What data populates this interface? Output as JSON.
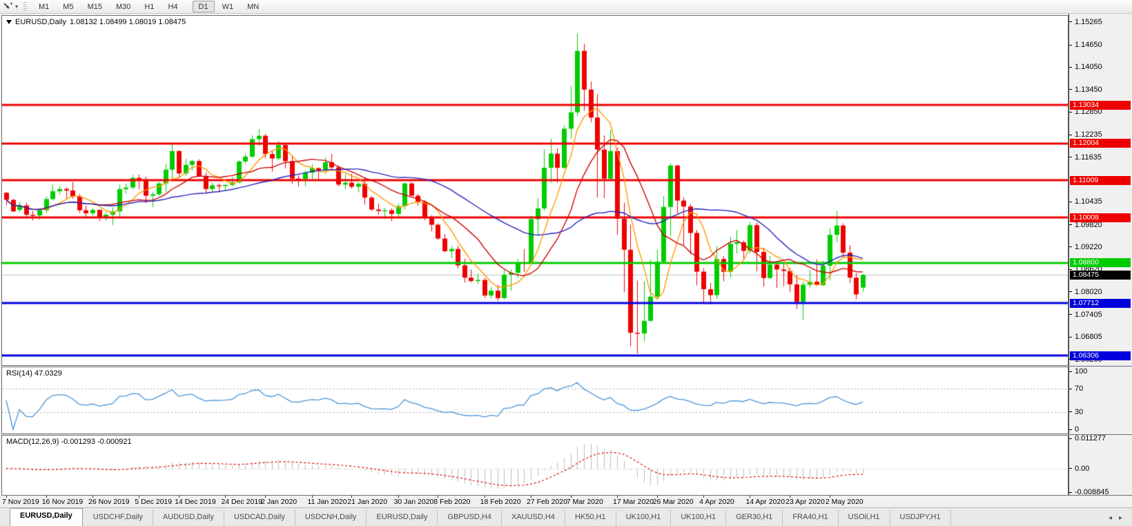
{
  "toolbar": {
    "timeframes": [
      {
        "label": "M1"
      },
      {
        "label": "M5"
      },
      {
        "label": "M15"
      },
      {
        "label": "M30"
      },
      {
        "label": "H1"
      },
      {
        "label": "H4"
      },
      {
        "label": "D1",
        "active": true
      },
      {
        "label": "W1"
      },
      {
        "label": "MN"
      }
    ]
  },
  "chart": {
    "title": {
      "symbol": "EURUSD,Daily",
      "ohlc": "1.08132 1.08499 1.08019 1.08475"
    },
    "view": {
      "price_max": 1.1543,
      "price_min": 1.0605
    },
    "price_axis": {
      "labels": [
        {
          "text": "1.15265",
          "price": 1.15265
        },
        {
          "text": "1.14650",
          "price": 1.1465
        },
        {
          "text": "1.14050",
          "price": 1.1405
        },
        {
          "text": "1.13450",
          "price": 1.1345
        },
        {
          "text": "1.12850",
          "price": 1.1285
        },
        {
          "text": "1.12235",
          "price": 1.12235
        },
        {
          "text": "1.11635",
          "price": 1.11635
        },
        {
          "text": "1.10435",
          "price": 1.10435
        },
        {
          "text": "1.09820",
          "price": 1.0982
        },
        {
          "text": "1.09220",
          "price": 1.0922
        },
        {
          "text": "1.08620",
          "price": 1.0862
        },
        {
          "text": "1.08020",
          "price": 1.0802
        },
        {
          "text": "1.07405",
          "price": 1.07405
        },
        {
          "text": "1.06805",
          "price": 1.06805
        },
        {
          "text": "1.06205",
          "price": 1.06205
        }
      ],
      "badges": [
        {
          "text": "1.13034",
          "price": 1.13034,
          "color": "#ee0000"
        },
        {
          "text": "1.12004",
          "price": 1.12004,
          "color": "#ee0000"
        },
        {
          "text": "1.11009",
          "price": 1.11009,
          "color": "#ee0000"
        },
        {
          "text": "1.10008",
          "price": 1.10008,
          "color": "#ee0000"
        },
        {
          "text": "1.08800",
          "price": 1.088,
          "color": "#00cc00"
        },
        {
          "text": "1.08475",
          "price": 1.08475,
          "color": "#000000",
          "current": true
        },
        {
          "text": "1.07712",
          "price": 1.07712,
          "color": "#0000dd"
        },
        {
          "text": "1.06306",
          "price": 1.06306,
          "color": "#0000dd"
        }
      ]
    },
    "hlines": [
      {
        "price": 1.13034,
        "color": "#ee0000",
        "width": 3
      },
      {
        "price": 1.12004,
        "color": "#ee0000",
        "width": 3
      },
      {
        "price": 1.11009,
        "color": "#ee0000",
        "width": 3
      },
      {
        "price": 1.10008,
        "color": "#ee0000",
        "width": 3
      },
      {
        "price": 1.088,
        "color": "#00cc00",
        "width": 3
      },
      {
        "price": 1.07712,
        "color": "#0000dd",
        "width": 3
      },
      {
        "price": 1.06306,
        "color": "#0000dd",
        "width": 3
      },
      {
        "price": 1.08475,
        "color": "#c0c0c0",
        "width": 1,
        "role": "current-price-line"
      }
    ]
  },
  "rsi": {
    "label": "RSI(14) 47.0329",
    "period": 14,
    "color": "#4790d9",
    "levels": [
      {
        "text": "100",
        "value": 100,
        "dashed": false
      },
      {
        "text": "70",
        "value": 70,
        "dashed": true
      },
      {
        "text": "30",
        "value": 30,
        "dashed": true
      },
      {
        "text": "0",
        "value": 0,
        "dashed": false
      }
    ]
  },
  "macd": {
    "label": "MACD(12,26,9) -0.001293 -0.000921",
    "fast": 12,
    "slow": 26,
    "signal": 9,
    "hist_color": "#bdbdbd",
    "signal_color": "#e00000",
    "range": {
      "max": 0.011277,
      "min": -0.008845
    },
    "axis_labels": [
      {
        "text": "0.011277",
        "value": 0.011277
      },
      {
        "text": "0.00",
        "value": 0
      },
      {
        "text": "-0.008845",
        "value": -0.008845
      }
    ]
  },
  "date_axis": {
    "labels": [
      {
        "text": "7 Nov 2019",
        "index": 0
      },
      {
        "text": "16 Nov 2019",
        "index": 6
      },
      {
        "text": "26 Nov 2019",
        "index": 13
      },
      {
        "text": "5 Dec 2019",
        "index": 20
      },
      {
        "text": "14 Dec 2019",
        "index": 26
      },
      {
        "text": "24 Dec 2019",
        "index": 33
      },
      {
        "text": "2 Jan 2020",
        "index": 39
      },
      {
        "text": "11 Jan 2020",
        "index": 46
      },
      {
        "text": "21 Jan 2020",
        "index": 52
      },
      {
        "text": "30 Jan 2020",
        "index": 59
      },
      {
        "text": "8 Feb 2020",
        "index": 65
      },
      {
        "text": "18 Feb 2020",
        "index": 72
      },
      {
        "text": "27 Feb 2020",
        "index": 79
      },
      {
        "text": "7 Mar 2020",
        "index": 85
      },
      {
        "text": "17 Mar 2020",
        "index": 92
      },
      {
        "text": "26 Mar 2020",
        "index": 98
      },
      {
        "text": "4 Apr 2020",
        "index": 105
      },
      {
        "text": "14 Apr 2020",
        "index": 112
      },
      {
        "text": "23 Apr 2020",
        "index": 118
      },
      {
        "text": "2 May 2020",
        "index": 124
      }
    ]
  },
  "tab_bar": {
    "tabs": [
      {
        "label": "EURUSD,Daily",
        "active": true
      },
      {
        "label": "USDCHF,Daily"
      },
      {
        "label": "AUDUSD,Daily"
      },
      {
        "label": "USDCAD,Daily"
      },
      {
        "label": "USDCNH,Daily"
      },
      {
        "label": "EURUSD,Daily"
      },
      {
        "label": "GBPUSD,H4"
      },
      {
        "label": "XAUUSD,H4"
      },
      {
        "label": "HK50,H1"
      },
      {
        "label": "UK100,H1"
      },
      {
        "label": "UK100,H1"
      },
      {
        "label": "GER30,H1"
      },
      {
        "label": "FRA40,H1"
      },
      {
        "label": "USOil,H1"
      },
      {
        "label": "USDJPY,H1"
      }
    ],
    "left_arrow": "◂",
    "right_arrow": "▸"
  },
  "chart_data": {
    "type": "candlestick",
    "symbol": "EURUSD",
    "timeframe": "Daily",
    "colors": {
      "up": "#00cc00",
      "down": "#ee0000"
    },
    "overlays": [
      {
        "name": "sma-fast",
        "period": 6,
        "color": "#ff9900"
      },
      {
        "name": "sma-mid",
        "period": 12,
        "color": "#cc0000"
      },
      {
        "name": "sma-slow",
        "period": 30,
        "color": "#2222bb"
      }
    ],
    "candles": [
      [
        1.1068,
        1.107,
        1.1035,
        1.1049
      ],
      [
        1.1049,
        1.1051,
        1.1016,
        1.1018
      ],
      [
        1.1022,
        1.1043,
        1.1016,
        1.1034
      ],
      [
        1.1034,
        1.1042,
        1.1002,
        1.1009
      ],
      [
        1.1009,
        1.1019,
        1.0994,
        1.1007
      ],
      [
        1.1007,
        1.1027,
        1.0996,
        1.1021
      ],
      [
        1.1021,
        1.1058,
        1.1014,
        1.1051
      ],
      [
        1.1051,
        1.109,
        1.1047,
        1.1072
      ],
      [
        1.1072,
        1.1085,
        1.1064,
        1.1078
      ],
      [
        1.1078,
        1.1083,
        1.1052,
        1.1074
      ],
      [
        1.1074,
        1.1097,
        1.1052,
        1.1058
      ],
      [
        1.1058,
        1.1065,
        1.1014,
        1.1021
      ],
      [
        1.1021,
        1.1033,
        1.1003,
        1.1013
      ],
      [
        1.1013,
        1.1026,
        1.1006,
        1.1022
      ],
      [
        1.1022,
        1.1023,
        1.0992,
        1.1001
      ],
      [
        1.1001,
        1.1016,
        1.0993,
        1.1009
      ],
      [
        1.1009,
        1.1028,
        1.0981,
        1.1018
      ],
      [
        1.1018,
        1.109,
        1.1003,
        1.1078
      ],
      [
        1.1078,
        1.1093,
        1.1066,
        1.1082
      ],
      [
        1.1082,
        1.1116,
        1.1077,
        1.1108
      ],
      [
        1.1108,
        1.1117,
        1.1078,
        1.1104
      ],
      [
        1.1104,
        1.1111,
        1.104,
        1.106
      ],
      [
        1.106,
        1.107,
        1.1029,
        1.1064
      ],
      [
        1.1064,
        1.1097,
        1.1059,
        1.1093
      ],
      [
        1.1093,
        1.1144,
        1.107,
        1.113
      ],
      [
        1.113,
        1.1199,
        1.1102,
        1.118
      ],
      [
        1.118,
        1.1182,
        1.111,
        1.112
      ],
      [
        1.112,
        1.1159,
        1.1113,
        1.1143
      ],
      [
        1.1143,
        1.1156,
        1.1128,
        1.1153
      ],
      [
        1.1153,
        1.1158,
        1.111,
        1.1113
      ],
      [
        1.1113,
        1.1123,
        1.1066,
        1.1078
      ],
      [
        1.1078,
        1.1095,
        1.1069,
        1.1088
      ],
      [
        1.1088,
        1.1093,
        1.1069,
        1.1086
      ],
      [
        1.1086,
        1.1091,
        1.1072,
        1.1089
      ],
      [
        1.1089,
        1.1111,
        1.1084,
        1.1096
      ],
      [
        1.1096,
        1.1155,
        1.1093,
        1.1152
      ],
      [
        1.1152,
        1.1173,
        1.1145,
        1.1165
      ],
      [
        1.1165,
        1.1222,
        1.1162,
        1.1212
      ],
      [
        1.1212,
        1.1239,
        1.1193,
        1.1221
      ],
      [
        1.1221,
        1.1226,
        1.116,
        1.1172
      ],
      [
        1.1172,
        1.118,
        1.1125,
        1.116
      ],
      [
        1.116,
        1.1207,
        1.1155,
        1.1196
      ],
      [
        1.1196,
        1.1199,
        1.1133,
        1.1153
      ],
      [
        1.1153,
        1.1165,
        1.1092,
        1.1106
      ],
      [
        1.1106,
        1.1115,
        1.1085,
        1.1105
      ],
      [
        1.1105,
        1.1128,
        1.1086,
        1.1122
      ],
      [
        1.1122,
        1.1145,
        1.1104,
        1.1134
      ],
      [
        1.1134,
        1.1136,
        1.1104,
        1.1128
      ],
      [
        1.1128,
        1.1163,
        1.1119,
        1.115
      ],
      [
        1.115,
        1.1172,
        1.1128,
        1.1136
      ],
      [
        1.1136,
        1.1141,
        1.1085,
        1.109
      ],
      [
        1.109,
        1.1118,
        1.1077,
        1.1095
      ],
      [
        1.1095,
        1.1119,
        1.1079,
        1.1084
      ],
      [
        1.1084,
        1.1095,
        1.1069,
        1.1092
      ],
      [
        1.1092,
        1.1109,
        1.1036,
        1.1055
      ],
      [
        1.1055,
        1.1059,
        1.1019,
        1.1023
      ],
      [
        1.1023,
        1.1039,
        1.1009,
        1.1019
      ],
      [
        1.1019,
        1.1027,
        1.0998,
        1.1021
      ],
      [
        1.1021,
        1.1026,
        1.0992,
        1.1011
      ],
      [
        1.1011,
        1.1039,
        1.1003,
        1.1032
      ],
      [
        1.1032,
        1.1095,
        1.1023,
        1.1093
      ],
      [
        1.1093,
        1.1096,
        1.1058,
        1.106
      ],
      [
        1.106,
        1.1065,
        1.1033,
        1.1044
      ],
      [
        1.1044,
        1.1048,
        1.0994,
        1.1
      ],
      [
        1.1,
        1.1008,
        1.0964,
        1.0982
      ],
      [
        1.0982,
        1.0986,
        1.0941,
        1.0945
      ],
      [
        1.0945,
        1.0957,
        1.0909,
        1.0911
      ],
      [
        1.0911,
        1.0925,
        1.0892,
        1.0917
      ],
      [
        1.0917,
        1.0926,
        1.0865,
        1.0873
      ],
      [
        1.0873,
        1.0891,
        1.0827,
        1.084
      ],
      [
        1.084,
        1.0862,
        1.0827,
        1.0831
      ],
      [
        1.0831,
        1.0851,
        1.0823,
        1.0834
      ],
      [
        1.0834,
        1.0839,
        1.0786,
        1.0792
      ],
      [
        1.0792,
        1.0815,
        1.0784,
        1.0805
      ],
      [
        1.0805,
        1.0821,
        1.0778,
        1.0785
      ],
      [
        1.0785,
        1.0862,
        1.0782,
        1.0848
      ],
      [
        1.0848,
        1.0862,
        1.0805,
        1.0853
      ],
      [
        1.0853,
        1.089,
        1.084,
        1.0881
      ],
      [
        1.0881,
        1.0917,
        1.0855,
        1.088
      ],
      [
        1.088,
        1.1006,
        1.0879,
        1.0997
      ],
      [
        1.0997,
        1.1053,
        1.0952,
        1.1026
      ],
      [
        1.1026,
        1.1185,
        1.102,
        1.1135
      ],
      [
        1.1135,
        1.1213,
        1.1095,
        1.1173
      ],
      [
        1.1173,
        1.1187,
        1.1095,
        1.1135
      ],
      [
        1.1135,
        1.1249,
        1.1132,
        1.124
      ],
      [
        1.124,
        1.1355,
        1.1213,
        1.1284
      ],
      [
        1.1284,
        1.1495,
        1.1274,
        1.1449
      ],
      [
        1.1449,
        1.1468,
        1.1288,
        1.1345
      ],
      [
        1.1345,
        1.1367,
        1.1257,
        1.127
      ],
      [
        1.127,
        1.1333,
        1.1055,
        1.1184
      ],
      [
        1.1184,
        1.1222,
        1.1054,
        1.1106
      ],
      [
        1.1106,
        1.1237,
        1.1101,
        1.118
      ],
      [
        1.118,
        1.1189,
        1.0955,
        1.0998
      ],
      [
        1.0998,
        1.1041,
        1.0801,
        1.0915
      ],
      [
        1.0915,
        1.0982,
        1.0656,
        1.0692
      ],
      [
        1.0692,
        1.0832,
        1.0636,
        1.069
      ],
      [
        1.069,
        1.083,
        1.067,
        1.0724
      ],
      [
        1.0724,
        1.0888,
        1.0722,
        1.0789
      ],
      [
        1.0789,
        1.0915,
        1.0781,
        1.0883
      ],
      [
        1.0883,
        1.1059,
        1.0881,
        1.103
      ],
      [
        1.103,
        1.1147,
        1.0953,
        1.1141
      ],
      [
        1.1141,
        1.1144,
        1.1012,
        1.1047
      ],
      [
        1.1047,
        1.1056,
        1.0927,
        1.1031
      ],
      [
        1.1031,
        1.1038,
        1.0903,
        1.096
      ],
      [
        1.096,
        1.0968,
        1.0819,
        1.0856
      ],
      [
        1.0856,
        1.0866,
        1.0773,
        1.0809
      ],
      [
        1.0809,
        1.0826,
        1.0768,
        1.0793
      ],
      [
        1.0793,
        1.0925,
        1.0783,
        1.089
      ],
      [
        1.089,
        1.0898,
        1.083,
        1.0856
      ],
      [
        1.0856,
        1.095,
        1.084,
        1.0931
      ],
      [
        1.0931,
        1.0968,
        1.0905,
        1.0935
      ],
      [
        1.0935,
        1.094,
        1.0891,
        1.0912
      ],
      [
        1.0912,
        1.099,
        1.0905,
        1.0981
      ],
      [
        1.0981,
        1.0988,
        1.0857,
        1.0909
      ],
      [
        1.0909,
        1.092,
        1.0816,
        1.0839
      ],
      [
        1.0839,
        1.0898,
        1.0836,
        1.0875
      ],
      [
        1.0875,
        1.0882,
        1.0812,
        1.0862
      ],
      [
        1.0862,
        1.0879,
        1.0817,
        1.0858
      ],
      [
        1.0858,
        1.0866,
        1.0802,
        1.0822
      ],
      [
        1.0822,
        1.0847,
        1.0756,
        1.0775
      ],
      [
        1.0775,
        1.0829,
        1.0727,
        1.0821
      ],
      [
        1.0821,
        1.0861,
        1.0812,
        1.0829
      ],
      [
        1.0829,
        1.0889,
        1.0818,
        1.082
      ],
      [
        1.082,
        1.0885,
        1.0817,
        1.0872
      ],
      [
        1.0872,
        1.0972,
        1.0833,
        1.0955
      ],
      [
        1.0955,
        1.1019,
        1.0935,
        1.098
      ],
      [
        1.098,
        1.0986,
        1.0895,
        1.0907
      ],
      [
        1.0907,
        1.0927,
        1.0826,
        1.084
      ],
      [
        1.084,
        1.0852,
        1.0782,
        1.0795
      ],
      [
        1.08132,
        1.08499,
        1.08019,
        1.08475
      ]
    ]
  }
}
